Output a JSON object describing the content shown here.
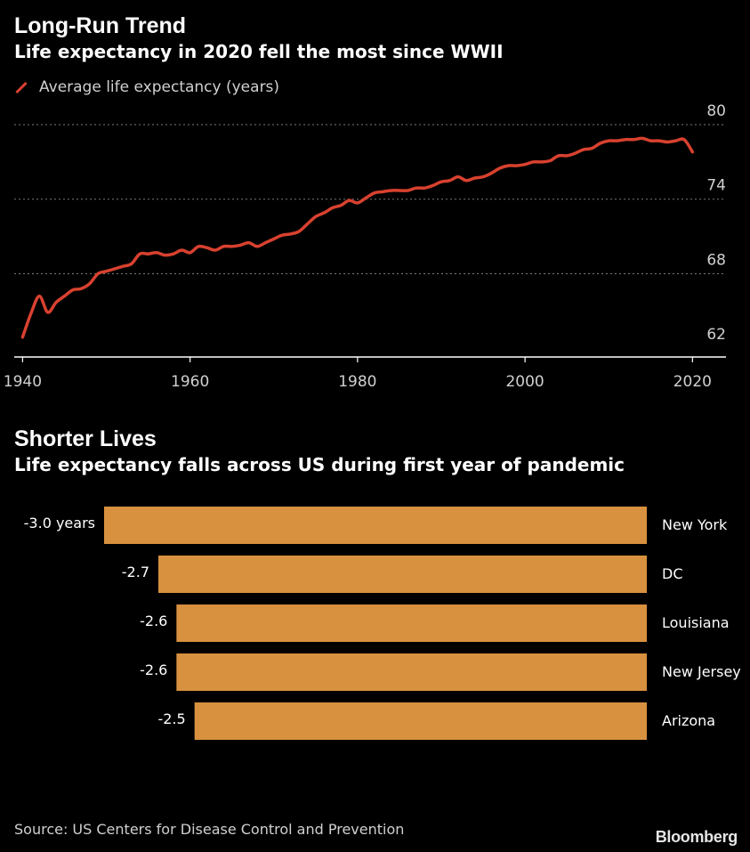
{
  "colors": {
    "background": "#000000",
    "line": "#d8412f",
    "bar": "#d7913f",
    "grid": "#7a7a7a",
    "text": "#ffffff",
    "muted": "#d0d0d0"
  },
  "chart1": {
    "title": "Long-Run Trend",
    "subtitle": "Life expectancy in 2020 fell the most since WWII"
  },
  "chart2": {
    "title": "Shorter Lives",
    "subtitle": "Life expectancy falls across US during first year of pandemic"
  },
  "source": "Source: US Centers for Disease Control and Prevention",
  "brand": "Bloomberg",
  "chart_data": [
    {
      "type": "line",
      "title": "Long-Run Trend",
      "subtitle": "Life expectancy in 2020 fell the most since WWII",
      "xlabel": "",
      "ylabel": "",
      "legend_position": "top-left",
      "grid": true,
      "xlim": [
        1939,
        2024
      ],
      "ylim": [
        61.3,
        80
      ],
      "x_ticks": [
        1940,
        1960,
        1980,
        2000,
        2020
      ],
      "x_tick_labels": [
        "1940",
        "1960",
        "1980",
        "2000",
        "2020"
      ],
      "y_ticks": [
        62,
        68,
        74,
        80
      ],
      "y_tick_labels": [
        "62",
        "68",
        "74",
        "80"
      ],
      "y_axis_side": "right",
      "series": [
        {
          "name": "Average life expectancy (years)",
          "color": "#d8412f",
          "x": [
            1940,
            1941,
            1942,
            1943,
            1944,
            1945,
            1946,
            1947,
            1948,
            1949,
            1950,
            1951,
            1952,
            1953,
            1954,
            1955,
            1956,
            1957,
            1958,
            1959,
            1960,
            1961,
            1962,
            1963,
            1964,
            1965,
            1966,
            1967,
            1968,
            1969,
            1970,
            1971,
            1972,
            1973,
            1974,
            1975,
            1976,
            1977,
            1978,
            1979,
            1980,
            1981,
            1982,
            1983,
            1984,
            1985,
            1986,
            1987,
            1988,
            1989,
            1990,
            1991,
            1992,
            1993,
            1994,
            1995,
            1996,
            1997,
            1998,
            1999,
            2000,
            2001,
            2002,
            2003,
            2004,
            2005,
            2006,
            2007,
            2008,
            2009,
            2010,
            2011,
            2012,
            2013,
            2014,
            2015,
            2016,
            2017,
            2018,
            2019,
            2020
          ],
          "values": [
            62.9,
            64.8,
            66.2,
            64.9,
            65.7,
            66.2,
            66.7,
            66.8,
            67.2,
            68.0,
            68.2,
            68.4,
            68.6,
            68.8,
            69.6,
            69.6,
            69.7,
            69.5,
            69.6,
            69.9,
            69.7,
            70.2,
            70.1,
            69.9,
            70.2,
            70.2,
            70.3,
            70.5,
            70.2,
            70.5,
            70.8,
            71.1,
            71.2,
            71.4,
            72.0,
            72.6,
            72.9,
            73.3,
            73.5,
            73.9,
            73.7,
            74.1,
            74.5,
            74.6,
            74.7,
            74.7,
            74.7,
            74.9,
            74.9,
            75.1,
            75.4,
            75.5,
            75.8,
            75.5,
            75.7,
            75.8,
            76.1,
            76.5,
            76.7,
            76.7,
            76.8,
            77.0,
            77.0,
            77.1,
            77.5,
            77.5,
            77.7,
            78.0,
            78.1,
            78.5,
            78.7,
            78.7,
            78.8,
            78.8,
            78.9,
            78.7,
            78.7,
            78.6,
            78.7,
            78.8,
            77.8
          ]
        }
      ]
    },
    {
      "type": "bar",
      "orientation": "horizontal",
      "title": "Shorter Lives",
      "subtitle": "Life expectancy falls across US during first year of pandemic",
      "xlabel": "",
      "ylabel": "",
      "grid": false,
      "xlim": [
        -3.0,
        0
      ],
      "categories": [
        "New York",
        "DC",
        "Louisiana",
        "New Jersey",
        "Arizona"
      ],
      "values": [
        -3.0,
        -2.7,
        -2.6,
        -2.6,
        -2.5
      ],
      "data_labels": [
        "-3.0 years",
        "-2.7",
        "-2.6",
        "-2.6",
        "-2.5"
      ],
      "color": "#d7913f"
    }
  ]
}
